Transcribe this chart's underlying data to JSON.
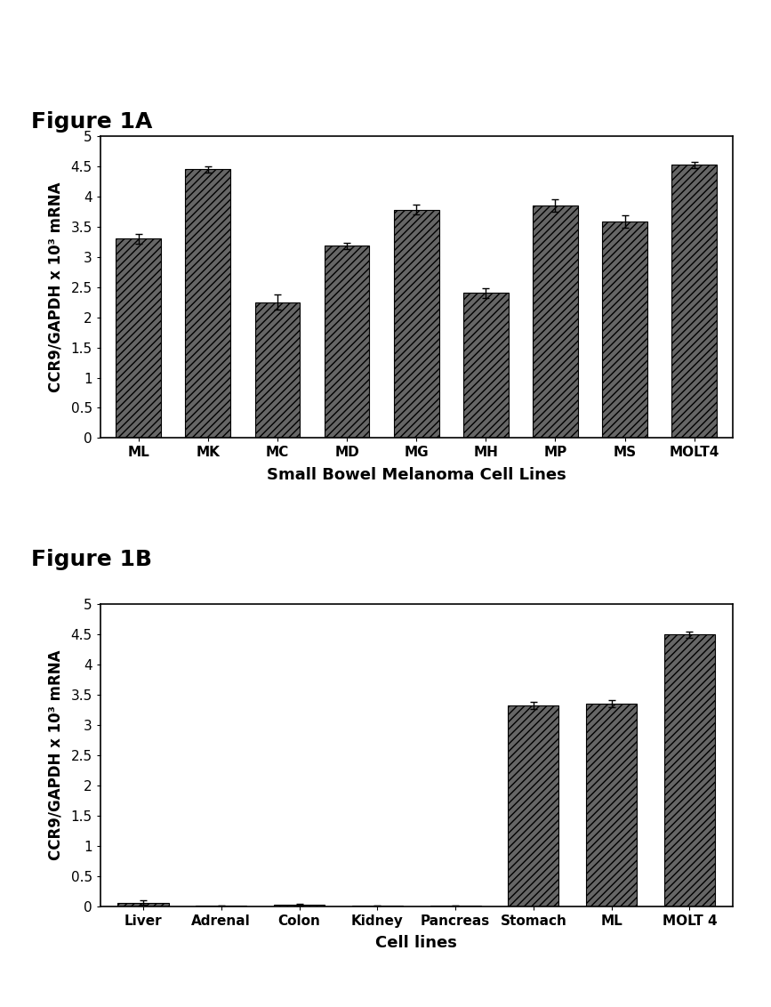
{
  "fig1A": {
    "categories": [
      "ML",
      "MK",
      "MC",
      "MD",
      "MG",
      "MH",
      "MP",
      "MS",
      "MOLT4"
    ],
    "values": [
      3.3,
      4.45,
      2.25,
      3.18,
      3.78,
      2.4,
      3.85,
      3.58,
      4.52
    ],
    "errors": [
      0.08,
      0.05,
      0.12,
      0.05,
      0.08,
      0.08,
      0.1,
      0.1,
      0.05
    ],
    "xlabel": "Small Bowel Melanoma Cell Lines",
    "ylabel": "CCR9/GAPDH x 10³ mRNA",
    "ylim": [
      0,
      5
    ],
    "yticks": [
      0,
      0.5,
      1,
      1.5,
      2,
      2.5,
      3,
      3.5,
      4,
      4.5,
      5
    ],
    "ytick_labels": [
      "0",
      "0.5",
      "1",
      "1.5",
      "2",
      "2.5",
      "3",
      "3.5",
      "4",
      "4.5",
      "5"
    ],
    "title": "Figure 1A"
  },
  "fig1B": {
    "categories": [
      "Liver",
      "Adrenal",
      "Colon",
      "Kidney",
      "Pancreas",
      "Stomach",
      "ML",
      "MOLT 4"
    ],
    "values": [
      0.06,
      0.01,
      0.02,
      0.01,
      0.01,
      3.33,
      3.35,
      4.5
    ],
    "errors": [
      0.04,
      0.005,
      0.015,
      0.005,
      0.005,
      0.06,
      0.06,
      0.05
    ],
    "xlabel": "Cell lines",
    "ylabel": "CCR9/GAPDH x 10³ mRNA",
    "ylim": [
      0,
      5
    ],
    "yticks": [
      0,
      0.5,
      1,
      1.5,
      2,
      2.5,
      3,
      3.5,
      4,
      4.5,
      5
    ],
    "ytick_labels": [
      "0",
      "0.5",
      "1",
      "1.5",
      "2",
      "2.5",
      "3",
      "3.5",
      "4",
      "4.5",
      "5"
    ],
    "title": "Figure 1B"
  },
  "background_color": "#ffffff",
  "figure_label_fontsize": 18,
  "axis_label_fontsize": 13,
  "tick_fontsize": 11,
  "bar_width": 0.65,
  "bar_facecolor": "#666666",
  "bar_edgecolor": "#000000",
  "bar_hatch": "////",
  "figsize": [
    8.67,
    11.32
  ],
  "dpi": 100
}
